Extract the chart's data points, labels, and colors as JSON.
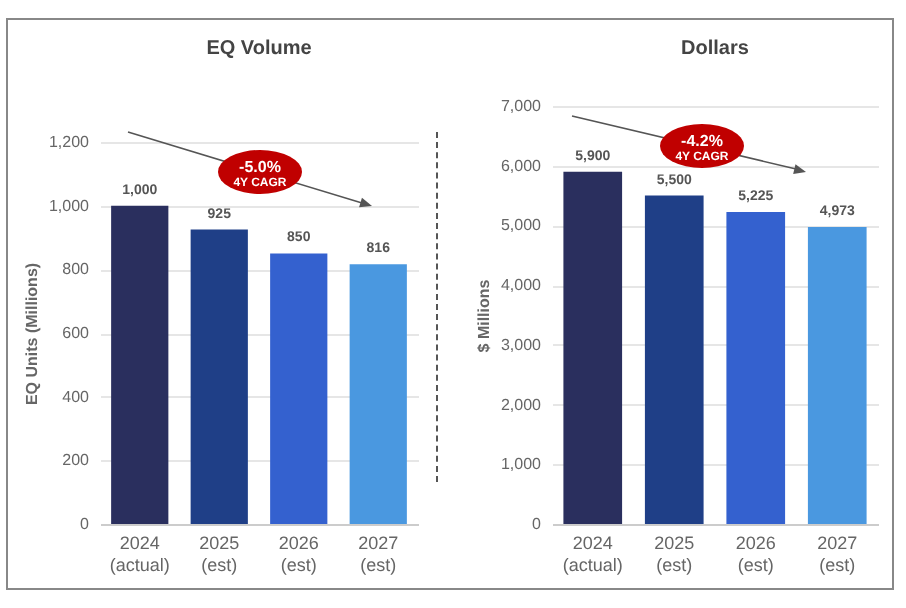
{
  "chart_data": [
    {
      "type": "bar",
      "title": "EQ Volume",
      "ylabel": "EQ Units (Millions)",
      "categories": [
        "2024 (actual)",
        "2025 (est)",
        "2026 (est)",
        "2027 (est)"
      ],
      "values": [
        1000,
        925,
        850,
        816
      ],
      "value_labels": [
        "1,000",
        "925",
        "850",
        "816"
      ],
      "colors": [
        "#2a2f5e",
        "#1f3f87",
        "#3461cf",
        "#4a98e0"
      ],
      "ylim": [
        0,
        1200
      ],
      "yticks": [
        0,
        200,
        400,
        600,
        800,
        {
          "value": 1000,
          "label": "1,000"
        },
        {
          "value": 1200,
          "label": "1,200"
        }
      ],
      "grid": "y",
      "annotations": [
        "-5.0%",
        "4Y CAGR"
      ]
    },
    {
      "type": "bar",
      "title": "Dollars",
      "ylabel": "$ Millions",
      "categories": [
        "2024 (actual)",
        "2025 (est)",
        "2026 (est)",
        "2027 (est)"
      ],
      "values": [
        5900,
        5500,
        5225,
        4973
      ],
      "value_labels": [
        "5,900",
        "5,500",
        "5,225",
        "4,973"
      ],
      "colors": [
        "#2a2f5e",
        "#1f3f87",
        "#3461cf",
        "#4a98e0"
      ],
      "ylim": [
        0,
        7000
      ],
      "yticks": [
        0,
        {
          "value": 1000,
          "label": "1,000"
        },
        {
          "value": 2000,
          "label": "2,000"
        },
        {
          "value": 3000,
          "label": "3,000"
        },
        {
          "value": 4000,
          "label": "4,000"
        },
        {
          "value": 5000,
          "label": "5,000"
        },
        {
          "value": 6000,
          "label": "6,000"
        },
        {
          "value": 7000,
          "label": "7,000"
        }
      ],
      "grid": "y",
      "annotations": [
        "-4.2%",
        "4Y CAGR"
      ]
    }
  ]
}
